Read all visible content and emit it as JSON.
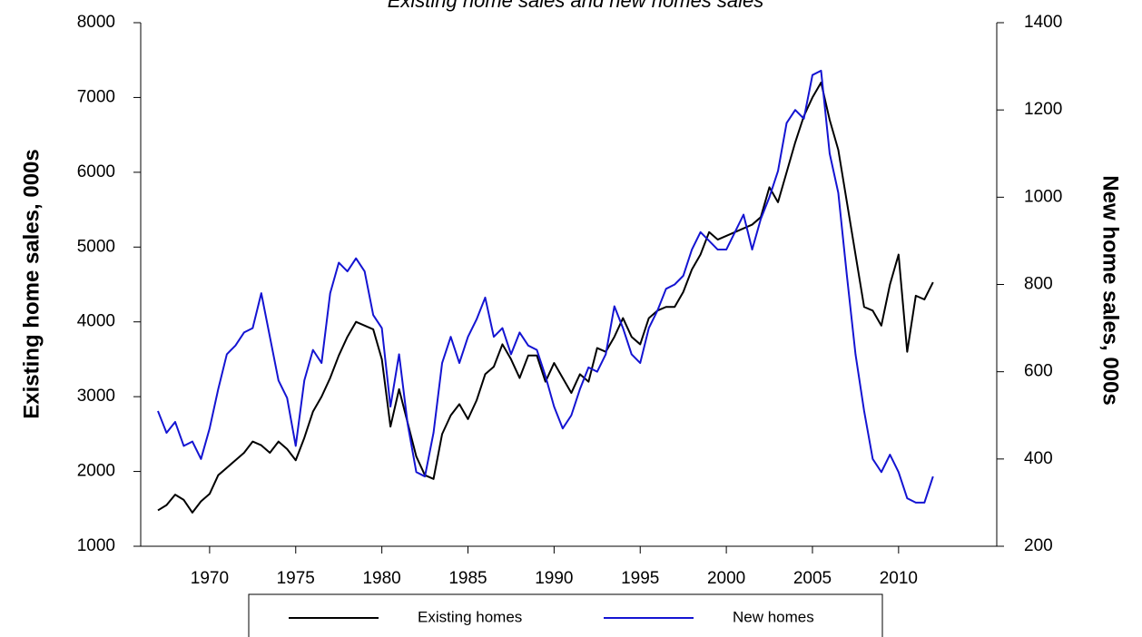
{
  "chart_data": {
    "type": "line",
    "title": "Existing home sales and new homes sales",
    "y_label": "Existing home sales, 000s",
    "y2_label": "New home sales, 000s",
    "x": [
      1967,
      1967.5,
      1968,
      1968.5,
      1969,
      1969.5,
      1970,
      1970.5,
      1971,
      1971.5,
      1972,
      1972.5,
      1973,
      1973.5,
      1974,
      1974.5,
      1975,
      1975.5,
      1976,
      1976.5,
      1977,
      1977.5,
      1978,
      1978.5,
      1979,
      1979.5,
      1980,
      1980.5,
      1981,
      1981.5,
      1982,
      1982.5,
      1983,
      1983.5,
      1984,
      1984.5,
      1985,
      1985.5,
      1986,
      1986.5,
      1987,
      1987.5,
      1988,
      1988.5,
      1989,
      1989.5,
      1990,
      1990.5,
      1991,
      1991.5,
      1992,
      1992.5,
      1993,
      1993.5,
      1994,
      1994.5,
      1995,
      1995.5,
      1996,
      1996.5,
      1997,
      1997.5,
      1998,
      1998.5,
      1999,
      1999.5,
      2000,
      2000.5,
      2001,
      2001.5,
      2002,
      2002.5,
      2003,
      2003.5,
      2004,
      2004.5,
      2005,
      2005.5,
      2006,
      2006.5,
      2007,
      2007.5,
      2008,
      2008.5,
      2009,
      2009.5,
      2010,
      2010.5,
      2011,
      2011.5,
      2012
    ],
    "series": [
      {
        "name": "Existing homes",
        "color": "#000000",
        "axis": "y",
        "values": [
          1480,
          1550,
          1690,
          1620,
          1450,
          1600,
          1700,
          1950,
          2050,
          2150,
          2250,
          2400,
          2350,
          2250,
          2400,
          2300,
          2150,
          2450,
          2800,
          3000,
          3250,
          3550,
          3800,
          4000,
          3950,
          3900,
          3500,
          2600,
          3100,
          2650,
          2200,
          1950,
          1900,
          2500,
          2750,
          2900,
          2700,
          2950,
          3300,
          3400,
          3700,
          3500,
          3250,
          3550,
          3550,
          3200,
          3450,
          3250,
          3050,
          3300,
          3200,
          3650,
          3600,
          3800,
          4050,
          3800,
          3700,
          4050,
          4150,
          4200,
          4200,
          4400,
          4700,
          4900,
          5200,
          5100,
          5150,
          5200,
          5250,
          5300,
          5400,
          5800,
          5600,
          6000,
          6400,
          6750,
          7000,
          7200,
          6700,
          6300,
          5600,
          4900,
          4200,
          4150,
          3950,
          4500,
          4900,
          3600,
          4350,
          4300,
          4530
        ]
      },
      {
        "name": "New homes",
        "color": "#1414d2",
        "axis": "y2",
        "values": [
          510,
          460,
          485,
          430,
          440,
          400,
          470,
          560,
          640,
          660,
          690,
          700,
          780,
          680,
          580,
          540,
          430,
          580,
          650,
          620,
          780,
          850,
          830,
          860,
          830,
          730,
          700,
          520,
          640,
          480,
          370,
          360,
          460,
          620,
          680,
          620,
          680,
          720,
          770,
          680,
          700,
          640,
          690,
          660,
          650,
          590,
          520,
          470,
          500,
          560,
          610,
          600,
          640,
          750,
          700,
          640,
          620,
          700,
          740,
          790,
          800,
          820,
          880,
          920,
          900,
          880,
          880,
          920,
          960,
          880,
          950,
          1000,
          1060,
          1170,
          1200,
          1180,
          1280,
          1290,
          1100,
          1010,
          820,
          640,
          510,
          400,
          370,
          410,
          370,
          310,
          300,
          300,
          360
        ]
      }
    ],
    "xlim": [
      1966,
      2015.7
    ],
    "xticks": [
      1970,
      1975,
      1980,
      1985,
      1990,
      1995,
      2000,
      2005,
      2010
    ],
    "ylim": [
      1000,
      8000
    ],
    "yticks": [
      1000,
      2000,
      3000,
      4000,
      5000,
      6000,
      7000,
      8000
    ],
    "y2lim": [
      200,
      1400
    ],
    "y2ticks": [
      200,
      400,
      600,
      800,
      1000,
      1200,
      1400
    ],
    "grid": false,
    "legend": "bottom"
  }
}
